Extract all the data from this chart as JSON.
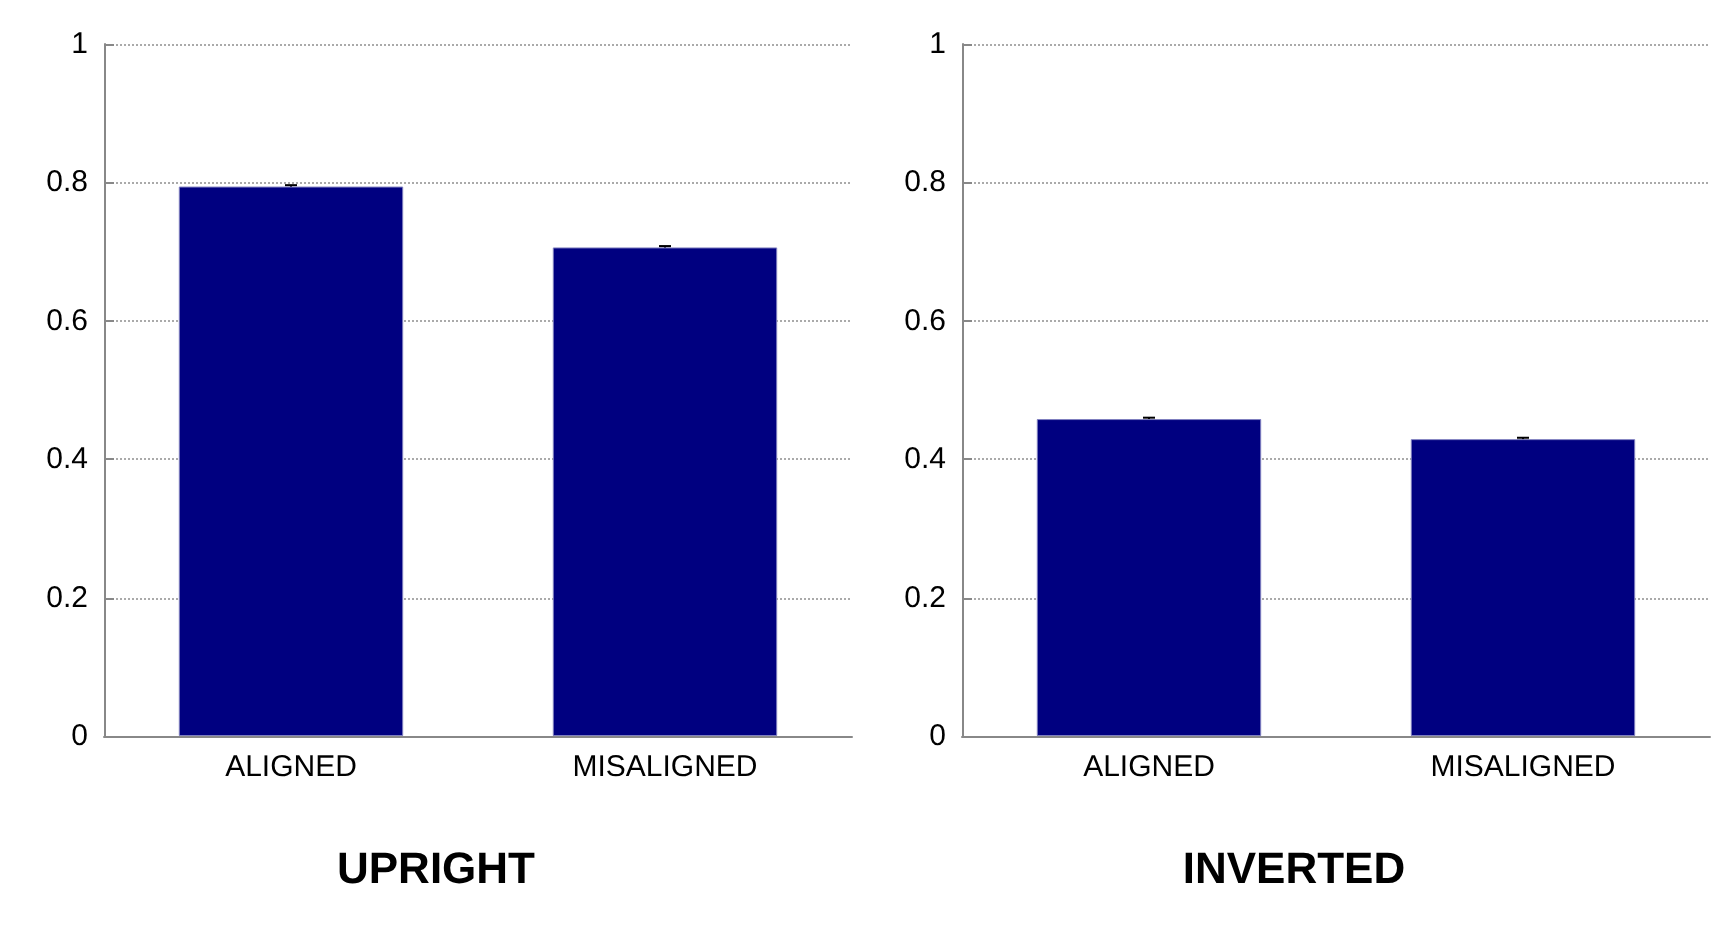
{
  "chart_data": [
    {
      "type": "bar",
      "title": "UPRIGHT",
      "categories": [
        "ALIGNED",
        "MISALIGNED"
      ],
      "values": [
        0.794,
        0.706
      ],
      "errors": [
        0.002,
        0.002
      ],
      "color": "#000080",
      "ylim": [
        0,
        1
      ],
      "yticks": [
        0,
        0.2,
        0.4,
        0.6,
        0.8,
        1
      ],
      "grid": "y"
    },
    {
      "type": "bar",
      "title": "INVERTED",
      "categories": [
        "ALIGNED",
        "MISALIGNED"
      ],
      "values": [
        0.458,
        0.429
      ],
      "errors": [
        0.002,
        0.002
      ],
      "color": "#000080",
      "ylim": [
        0,
        1
      ],
      "yticks": [
        0,
        0.2,
        0.4,
        0.6,
        0.8,
        1
      ],
      "grid": "y"
    }
  ]
}
